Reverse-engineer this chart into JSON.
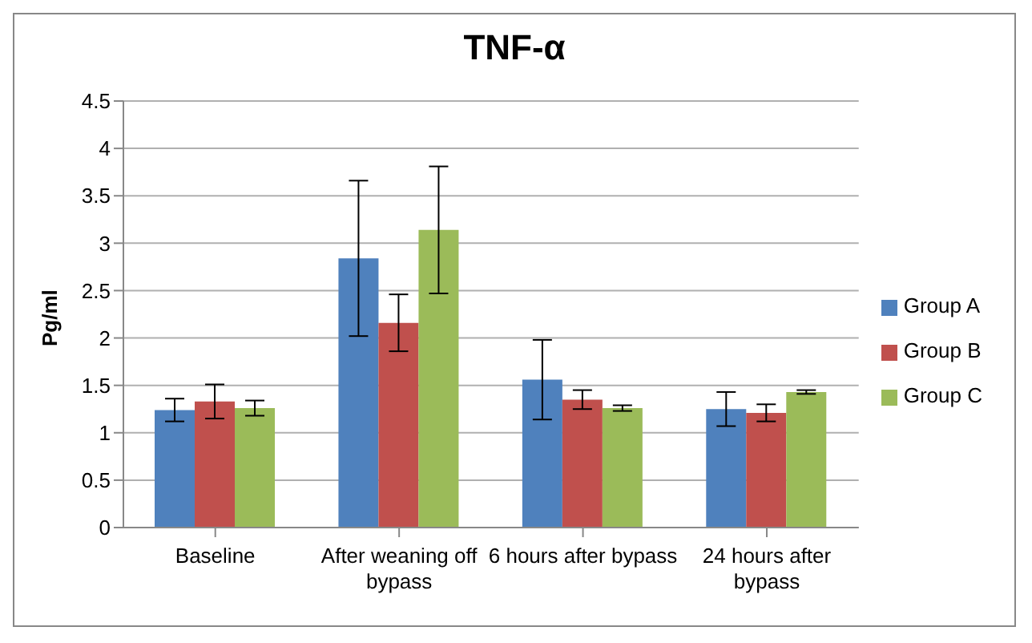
{
  "chart_data": {
    "type": "bar",
    "title": "TNF-α",
    "ylabel": "Pg/ml",
    "categories": [
      "Baseline",
      "After weaning off bypass",
      "6 hours after bypass",
      "24 hours after bypass"
    ],
    "series": [
      {
        "name": "Group A",
        "color": "#4f81bd",
        "values": [
          1.24,
          2.84,
          1.56,
          1.25
        ],
        "errors": [
          0.12,
          0.82,
          0.42,
          0.18
        ]
      },
      {
        "name": "Group B",
        "color": "#c0504d",
        "values": [
          1.33,
          2.16,
          1.35,
          1.21
        ],
        "errors": [
          0.18,
          0.3,
          0.1,
          0.09
        ]
      },
      {
        "name": "Group C",
        "color": "#9bbb59",
        "values": [
          1.26,
          3.14,
          1.26,
          1.43
        ],
        "errors": [
          0.08,
          0.67,
          0.03,
          0.02
        ]
      }
    ],
    "ylim": [
      0,
      4.5
    ],
    "yticks": [
      0,
      0.5,
      1,
      1.5,
      2,
      2.5,
      3,
      3.5,
      4,
      4.5
    ],
    "grid": "y",
    "legend": "right"
  }
}
